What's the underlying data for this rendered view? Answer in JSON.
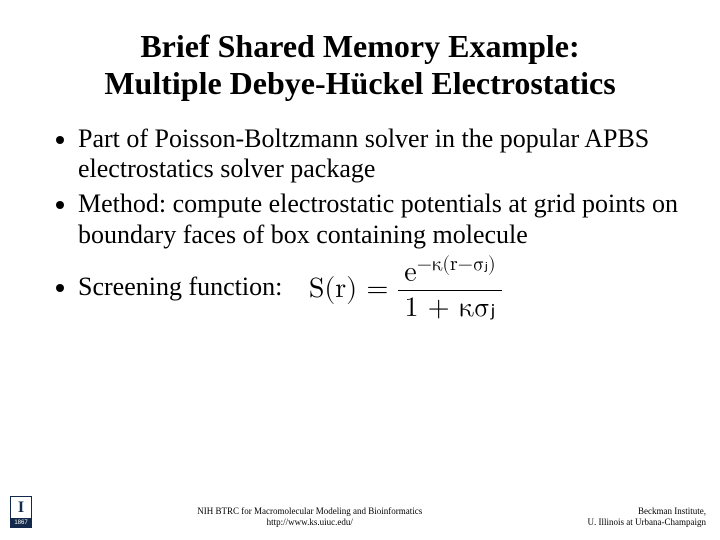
{
  "title": {
    "line1": "Brief Shared Memory Example:",
    "line2": "Multiple Debye-Hückel Electrostatics"
  },
  "bullets": {
    "b1": "Part of Poisson-Boltzmann solver in the popular APBS electrostatics solver package",
    "b2": "Method: compute electrostatic potentials at grid points on boundary faces of box containing molecule",
    "b3": "Screening function:"
  },
  "formula": {
    "lhs": "S(r) =",
    "num_prefix": "e",
    "num_exp": "−κ(r−σⱼ)",
    "den": "1 + κσⱼ"
  },
  "footer": {
    "logo_year": "1867",
    "center_line1": "NIH BTRC for Macromolecular Modeling and Bioinformatics",
    "center_line2": "http://www.ks.uiuc.edu/",
    "right_line1": "Beckman Institute,",
    "right_line2": "U. Illinois at Urbana-Champaign"
  },
  "styles": {
    "title_fontsize": 32,
    "body_fontsize": 26,
    "formula_fontsize": 28,
    "footer_fontsize": 9,
    "text_color": "#000000",
    "bg_color": "#ffffff",
    "logo_navy": "#13294b"
  }
}
